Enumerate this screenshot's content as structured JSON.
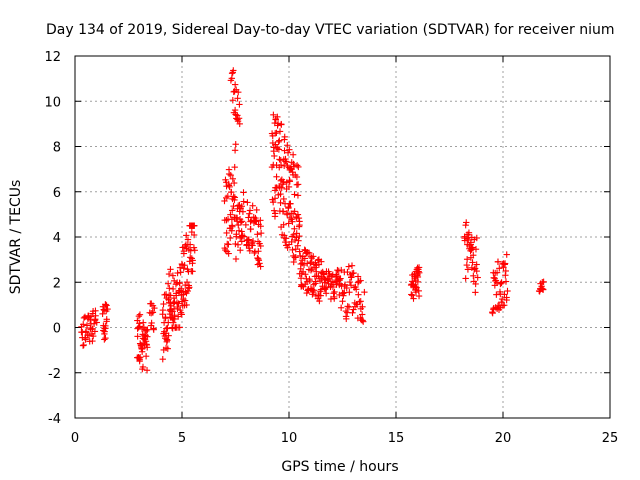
{
  "chart_data": {
    "type": "scatter",
    "title": "Day 134 of 2019, Sidereal Day-to-day VTEC variation (SDTVAR) for receiver nium",
    "xlabel": "GPS time / hours",
    "ylabel": "SDTVAR / TECUs",
    "xlim": [
      0,
      25
    ],
    "ylim": [
      -4,
      12
    ],
    "xticks": [
      0,
      5,
      10,
      15,
      20,
      25
    ],
    "yticks": [
      -4,
      -2,
      0,
      2,
      4,
      6,
      8,
      10,
      12
    ],
    "grid": true,
    "marker": "+",
    "color": "#ff0000",
    "series": [
      {
        "name": "SDTVAR",
        "segments": [
          {
            "x0": 0.3,
            "x1": 1.0,
            "ymin": -1.0,
            "ymax": 1.0,
            "trend": 0.6,
            "n": 40
          },
          {
            "x0": 1.3,
            "x1": 1.5,
            "ymin": -0.8,
            "ymax": 1.4,
            "trend": 0.2,
            "n": 20
          },
          {
            "x0": 2.9,
            "x1": 3.4,
            "ymin": -2.3,
            "ymax": 0.9,
            "trend": -0.5,
            "n": 45
          },
          {
            "x0": 3.5,
            "x1": 3.7,
            "ymin": -0.5,
            "ymax": 1.5,
            "trend": 0.4,
            "n": 12
          },
          {
            "x0": 4.1,
            "x1": 4.6,
            "ymin": -1.4,
            "ymax": 2.7,
            "trend": 1.0,
            "n": 50
          },
          {
            "x0": 4.6,
            "x1": 5.6,
            "ymin": 0.0,
            "ymax": 4.5,
            "trend": 1.6,
            "n": 90
          },
          {
            "x0": 7.0,
            "x1": 7.5,
            "ymin": 2.9,
            "ymax": 8.1,
            "trend": 0.7,
            "n": 45
          },
          {
            "x0": 7.3,
            "x1": 7.7,
            "ymin": 9.0,
            "ymax": 11.4,
            "trend": -0.8,
            "n": 22
          },
          {
            "x0": 7.5,
            "x1": 7.9,
            "ymin": 3.0,
            "ymax": 6.0,
            "trend": 0.8,
            "n": 30
          },
          {
            "x0": 8.0,
            "x1": 8.7,
            "ymin": 2.5,
            "ymax": 5.8,
            "trend": -0.5,
            "n": 50
          },
          {
            "x0": 9.2,
            "x1": 10.5,
            "ymin": 2.8,
            "ymax": 9.4,
            "trend": -0.9,
            "n": 140
          },
          {
            "x0": 10.5,
            "x1": 11.5,
            "ymin": 1.0,
            "ymax": 3.7,
            "trend": -0.4,
            "n": 70
          },
          {
            "x0": 11.5,
            "x1": 12.4,
            "ymin": 1.0,
            "ymax": 2.8,
            "trend": 0.0,
            "n": 50
          },
          {
            "x0": 12.4,
            "x1": 13.5,
            "ymin": -0.3,
            "ymax": 3.2,
            "trend": -0.3,
            "n": 55
          },
          {
            "x0": 15.7,
            "x1": 16.1,
            "ymin": 1.0,
            "ymax": 2.9,
            "trend": 0.0,
            "n": 35
          },
          {
            "x0": 18.2,
            "x1": 18.8,
            "ymin": 1.3,
            "ymax": 4.9,
            "trend": -0.4,
            "n": 40
          },
          {
            "x0": 19.5,
            "x1": 20.2,
            "ymin": 0.4,
            "ymax": 3.5,
            "trend": 0.3,
            "n": 45
          },
          {
            "x0": 21.7,
            "x1": 21.9,
            "ymin": 1.5,
            "ymax": 2.2,
            "trend": 0.0,
            "n": 12
          }
        ]
      }
    ]
  }
}
